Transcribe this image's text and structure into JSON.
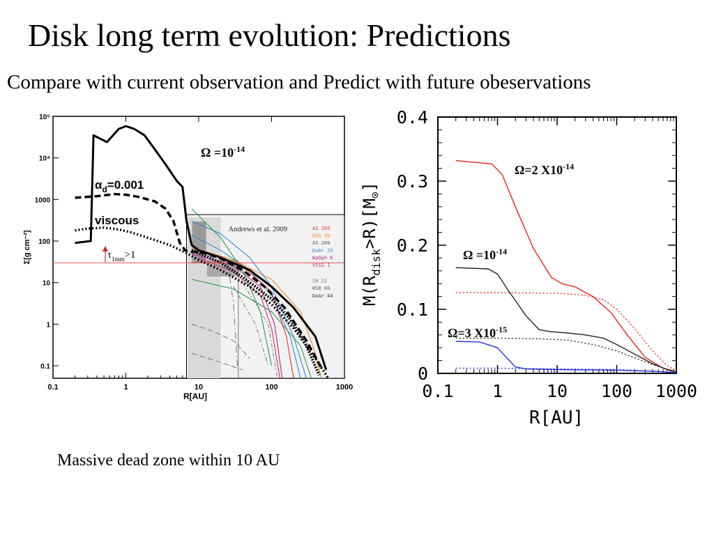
{
  "slide": {
    "title": "Disk long term evolution: Predictions",
    "subtitle": "Compare with current observation and Predict with future obeservations",
    "caption": "Massive dead zone within 10 AU"
  },
  "chart_data": [
    {
      "type": "line",
      "xlabel": "R[AU]",
      "ylabel": "Σ[g cm⁻²]",
      "xscale": "log",
      "yscale": "log",
      "xlim": [
        0.1,
        1000
      ],
      "ylim": [
        0.05,
        100000
      ],
      "x_ticks": [
        "0.1",
        "1",
        "10",
        "100",
        "1000"
      ],
      "y_ticks": [
        "0.1",
        "1",
        "10",
        "100",
        "1000",
        "10⁴",
        "10⁵"
      ],
      "annotations": {
        "omega_base": "Ω =10",
        "omega_exp": "-14",
        "alpha_base": "α",
        "alpha_sub": "d",
        "alpha_val": "=0.001",
        "viscous": "viscous",
        "tau_base": "τ",
        "tau_sub": "1mm",
        "tau_rest": ">1"
      },
      "inset": {
        "label": "Andrews et al. 2009",
        "legend": [
          {
            "name": "AS 205",
            "color": "#e03030"
          },
          {
            "name": "GSS 39",
            "color": "#f08a20"
          },
          {
            "name": "AS 209",
            "color": "#555555"
          },
          {
            "name": "DoAr 25",
            "color": "#2a8ad8"
          },
          {
            "name": "WaOph 6",
            "color": "#c0208a"
          },
          {
            "name": "VSSG 1",
            "color": "#d03070"
          },
          {
            "name": "SR 21",
            "color": "#777777"
          },
          {
            "name": "WSB 60",
            "color": "#666666"
          },
          {
            "name": "DoAr 44",
            "color": "#333333"
          }
        ]
      },
      "series": [
        {
          "name": "",
          "style": "solid",
          "x": [
            0.2,
            0.33,
            0.36,
            0.55,
            0.8,
            1.0,
            1.3,
            1.8,
            2.5,
            3.5,
            5.0,
            6.0,
            6.8,
            8,
            10,
            20,
            50,
            100,
            200,
            400,
            560
          ],
          "y": [
            90,
            100,
            35000,
            24000,
            50000,
            58000,
            50000,
            35000,
            16000,
            7000,
            2800,
            2000,
            300,
            80,
            60,
            40,
            20,
            8,
            2.5,
            0.5,
            0.08
          ]
        },
        {
          "name": "",
          "style": "dashed",
          "x": [
            0.2,
            0.4,
            0.7,
            1.0,
            1.5,
            2.5,
            3.5,
            4.5,
            5.5,
            6.5,
            7.5,
            9,
            12,
            20,
            40,
            80,
            150,
            300,
            500
          ],
          "y": [
            1100,
            1200,
            1350,
            1300,
            1150,
            900,
            600,
            300,
            90,
            60,
            55,
            55,
            52,
            38,
            20,
            8,
            2.5,
            0.4,
            0.08
          ]
        },
        {
          "name": "",
          "style": "dotted",
          "x": [
            0.2,
            0.3,
            0.5,
            0.8,
            1.2,
            2,
            4,
            7,
            10,
            20,
            50,
            100,
            200,
            400,
            600
          ],
          "y": [
            180,
            200,
            210,
            190,
            160,
            120,
            80,
            50,
            35,
            20,
            8,
            3,
            0.8,
            0.15,
            0.05
          ]
        }
      ],
      "tau_line_y": 30
    },
    {
      "type": "line",
      "xlabel": "R[AU]",
      "ylabel": "M(R_disk>R)[M_⊙]",
      "ylabel_parts": {
        "a": "M(R",
        "sub": "disk",
        "b": ">R)[M",
        "sun": "⊙",
        "c": "]"
      },
      "xscale": "log",
      "xlim": [
        0.1,
        1000
      ],
      "ylim": [
        0,
        0.4
      ],
      "x_ticks": [
        "0.1",
        "1",
        "10",
        "100",
        "1000"
      ],
      "y_ticks": [
        "0",
        "0.1",
        "0.2",
        "0.3",
        "0.4"
      ],
      "labels": [
        {
          "base": "Ω=2 X10",
          "exp": "-14"
        },
        {
          "base": "Ω =10",
          "exp": "-14"
        },
        {
          "base": "Ω=3 X10",
          "exp": "-15"
        }
      ],
      "series": [
        {
          "name": "Ω=2 X10-14",
          "color": "#ee2222",
          "style": "solid",
          "x": [
            0.2,
            0.8,
            1.2,
            2,
            4,
            8,
            12,
            20,
            40,
            80,
            150,
            300,
            600,
            900
          ],
          "y": [
            0.332,
            0.327,
            0.31,
            0.26,
            0.195,
            0.15,
            0.14,
            0.135,
            0.12,
            0.095,
            0.06,
            0.025,
            0.008,
            0.004
          ]
        },
        {
          "name": "",
          "color": "#ee2222",
          "style": "dotted",
          "x": [
            0.2,
            1,
            10,
            30,
            60,
            100,
            200,
            400,
            700,
            1000
          ],
          "y": [
            0.126,
            0.126,
            0.125,
            0.122,
            0.115,
            0.1,
            0.07,
            0.035,
            0.012,
            0.004
          ]
        },
        {
          "name": "Ω =10-14",
          "color": "#222222",
          "style": "solid",
          "x": [
            0.2,
            0.7,
            1.0,
            1.5,
            3,
            5,
            8,
            15,
            30,
            60,
            100,
            200,
            400,
            700,
            1000
          ],
          "y": [
            0.165,
            0.163,
            0.155,
            0.13,
            0.09,
            0.068,
            0.065,
            0.063,
            0.06,
            0.055,
            0.045,
            0.03,
            0.015,
            0.006,
            0.002
          ]
        },
        {
          "name": "",
          "color": "#222222",
          "style": "dotted",
          "x": [
            0.2,
            1,
            5,
            15,
            40,
            100,
            300,
            700,
            1000
          ],
          "y": [
            0.055,
            0.055,
            0.054,
            0.052,
            0.045,
            0.035,
            0.018,
            0.006,
            0.002
          ]
        },
        {
          "name": "Ω=3 X10-15",
          "color": "#2233dd",
          "style": "solid",
          "x": [
            0.2,
            0.5,
            1.0,
            1.4,
            2,
            3,
            10,
            100,
            500,
            1000
          ],
          "y": [
            0.05,
            0.049,
            0.04,
            0.025,
            0.01,
            0.007,
            0.006,
            0.005,
            0.003,
            0.001
          ]
        },
        {
          "name": "",
          "color": "#2233dd",
          "style": "dotted",
          "x": [
            0.2,
            1,
            10,
            100,
            500,
            1000
          ],
          "y": [
            0.008,
            0.008,
            0.007,
            0.006,
            0.003,
            0.001
          ]
        }
      ]
    }
  ]
}
